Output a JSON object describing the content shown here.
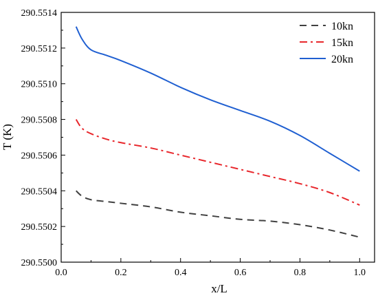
{
  "chart_data": {
    "type": "line",
    "xlabel": "x/L",
    "ylabel": "T (K)",
    "xlim": [
      0.0,
      1.05
    ],
    "ylim": [
      290.55,
      290.5514
    ],
    "xticks": [
      0.0,
      0.2,
      0.4,
      0.6,
      0.8,
      1.0
    ],
    "xtick_labels": [
      "0.0",
      "0.2",
      "0.4",
      "0.6",
      "0.8",
      "1.0"
    ],
    "yticks": [
      290.55,
      290.5502,
      290.5504,
      290.5506,
      290.5508,
      290.551,
      290.5512,
      290.5514
    ],
    "ytick_labels": [
      "290.5500",
      "290.5502",
      "290.5504",
      "290.5506",
      "290.5508",
      "290.5510",
      "290.5512",
      "290.5514"
    ],
    "grid": false,
    "legend_position": "top-right",
    "series": [
      {
        "name": "10kn",
        "color": "#404040",
        "dash": "dashed",
        "x": [
          0.05,
          0.07,
          0.1,
          0.15,
          0.2,
          0.3,
          0.4,
          0.5,
          0.6,
          0.7,
          0.8,
          0.9,
          1.0
        ],
        "y": [
          290.5504,
          290.55037,
          290.55035,
          290.55034,
          290.55033,
          290.55031,
          290.55028,
          290.55026,
          290.55024,
          290.55023,
          290.55021,
          290.55018,
          290.55014
        ]
      },
      {
        "name": "15kn",
        "color": "#e8262b",
        "dash": "dash-dot",
        "x": [
          0.05,
          0.07,
          0.1,
          0.15,
          0.2,
          0.3,
          0.4,
          0.5,
          0.6,
          0.7,
          0.8,
          0.9,
          1.0
        ],
        "y": [
          290.5508,
          290.55075,
          290.55072,
          290.55069,
          290.55067,
          290.55064,
          290.5506,
          290.55056,
          290.55052,
          290.55048,
          290.55044,
          290.55039,
          290.55032
        ]
      },
      {
        "name": "20kn",
        "color": "#1f5fd1",
        "dash": "solid",
        "x": [
          0.05,
          0.07,
          0.1,
          0.15,
          0.2,
          0.3,
          0.4,
          0.5,
          0.6,
          0.7,
          0.8,
          0.9,
          1.0
        ],
        "y": [
          290.55132,
          290.55125,
          290.55119,
          290.55116,
          290.55113,
          290.55106,
          290.55098,
          290.55091,
          290.55085,
          290.55079,
          290.55071,
          290.55061,
          290.55051
        ]
      }
    ]
  }
}
